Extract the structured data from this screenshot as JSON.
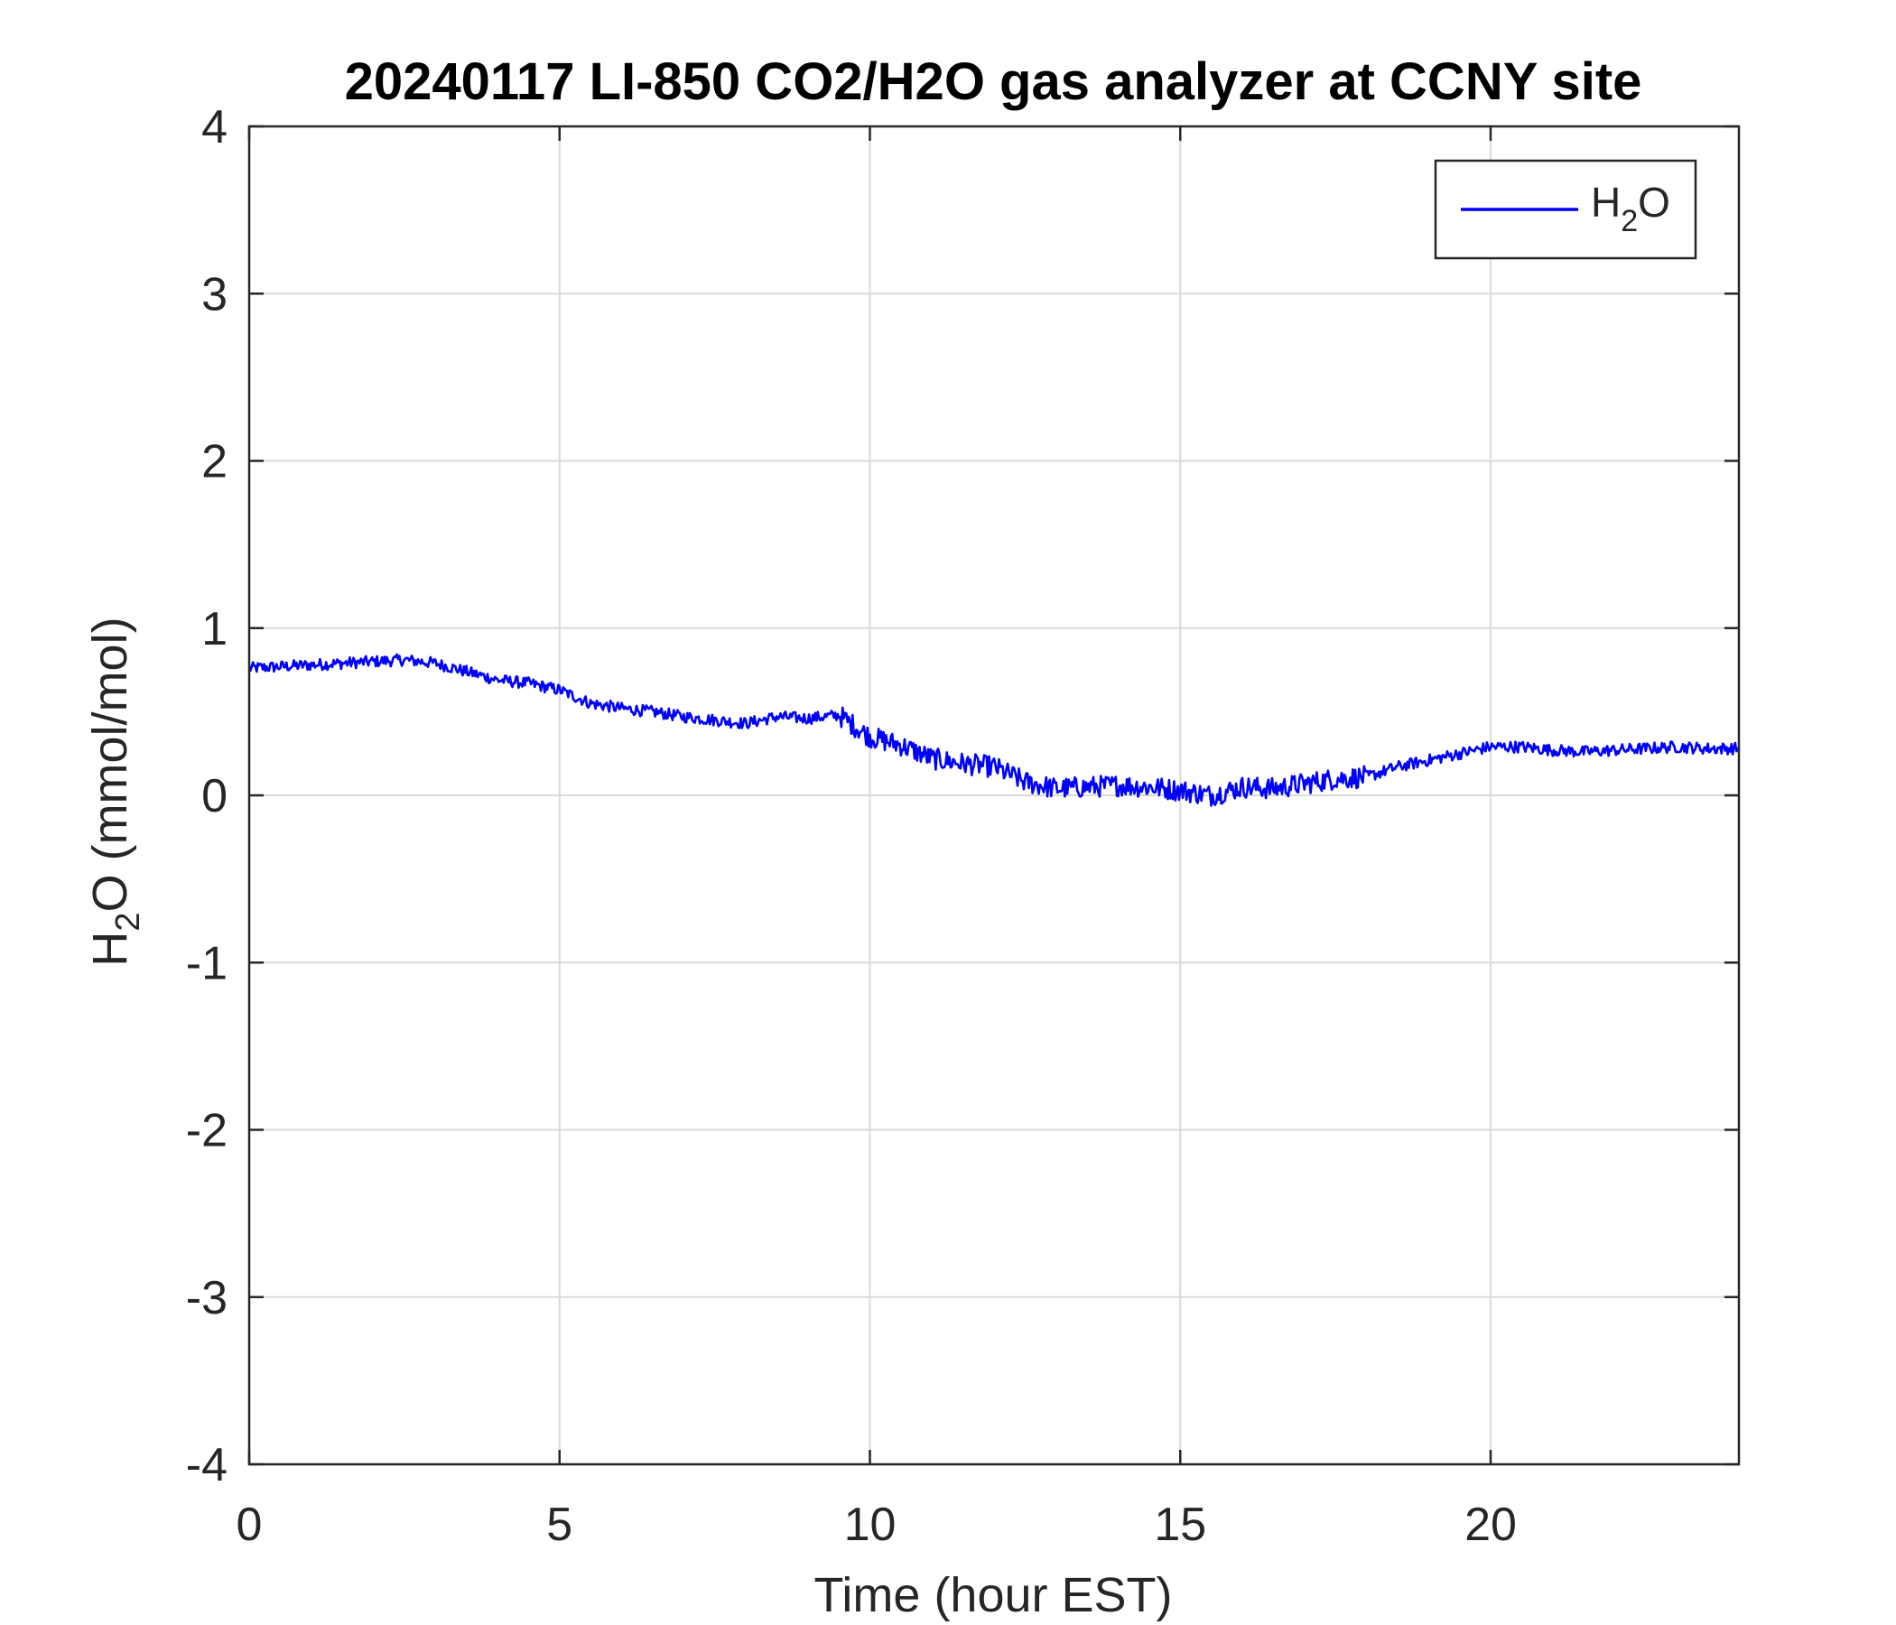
{
  "chart_data": {
    "type": "line",
    "title": "20240117 LI-850 CO2/H2O gas analyzer at CCNY site",
    "xlabel": "Time (hour EST)",
    "ylabel": {
      "main": "H",
      "sub": "2",
      "rest": "O (mmol/mol)"
    },
    "xlim": [
      0,
      24
    ],
    "ylim": [
      -4,
      4
    ],
    "xticks": [
      0,
      5,
      10,
      15,
      20
    ],
    "yticks": [
      -4,
      -3,
      -2,
      -1,
      0,
      1,
      2,
      3,
      4
    ],
    "grid": true,
    "legend_position": "top-right",
    "series": [
      {
        "name": {
          "main": "H",
          "sub": "2",
          "rest": "O"
        },
        "color": "#0000ff",
        "x": [
          0,
          0.5,
          1,
          1.5,
          2,
          2.5,
          3,
          3.5,
          4,
          4.5,
          5,
          5.5,
          6,
          6.5,
          7,
          7.5,
          8,
          8.5,
          9,
          9.5,
          10,
          10.5,
          11,
          11.5,
          12,
          12.5,
          13,
          13.5,
          14,
          14.5,
          15,
          15.5,
          16,
          16.5,
          17,
          17.5,
          18,
          18.5,
          19,
          19.5,
          20,
          20.5,
          21,
          21.5,
          22,
          22.5,
          23,
          23.5,
          24
        ],
        "y": [
          0.76,
          0.77,
          0.78,
          0.79,
          0.8,
          0.81,
          0.79,
          0.74,
          0.69,
          0.67,
          0.63,
          0.55,
          0.52,
          0.5,
          0.47,
          0.45,
          0.43,
          0.47,
          0.46,
          0.48,
          0.35,
          0.3,
          0.22,
          0.19,
          0.17,
          0.08,
          0.04,
          0.05,
          0.06,
          0.05,
          0.03,
          0.0,
          0.05,
          0.04,
          0.07,
          0.1,
          0.11,
          0.17,
          0.21,
          0.25,
          0.29,
          0.29,
          0.27,
          0.26,
          0.27,
          0.28,
          0.29,
          0.28,
          0.28
        ]
      }
    ]
  }
}
